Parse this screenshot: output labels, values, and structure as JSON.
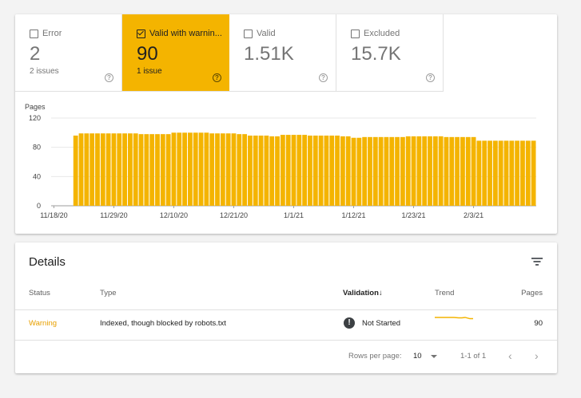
{
  "tiles": [
    {
      "label": "Error",
      "value": "2",
      "sub": "2 issues",
      "checked": false
    },
    {
      "label": "Valid with warnin...",
      "value": "90",
      "sub": "1 issue",
      "checked": true
    },
    {
      "label": "Valid",
      "value": "1.51K",
      "sub": "",
      "checked": false
    },
    {
      "label": "Excluded",
      "value": "15.7K",
      "sub": "",
      "checked": false
    }
  ],
  "help_glyph": "?",
  "colors": {
    "accent": "#f4b400",
    "bar": "#f4b400",
    "grid": "#e8e8e8",
    "axis": "#9e9e9e"
  },
  "chart_data": {
    "type": "bar",
    "ylabel": "Pages",
    "ylim": [
      0,
      120
    ],
    "yticks": [
      "0",
      "40",
      "80",
      "120"
    ],
    "xtick_labels": [
      "11/18/20",
      "11/29/20",
      "12/10/20",
      "12/21/20",
      "1/1/21",
      "1/12/21",
      "1/23/21",
      "2/3/21"
    ],
    "xtick_index": [
      0,
      11,
      22,
      33,
      44,
      55,
      66,
      77
    ],
    "series": [
      {
        "values": [
          0,
          0,
          0,
          0,
          96,
          99,
          99,
          99,
          99,
          99,
          99,
          99,
          99,
          99,
          99,
          99,
          98,
          98,
          98,
          98,
          98,
          98,
          100,
          100,
          100,
          100,
          100,
          100,
          100,
          99,
          99,
          99,
          99,
          99,
          98,
          98,
          96,
          96,
          96,
          96,
          95,
          95,
          97,
          97,
          97,
          97,
          97,
          96,
          96,
          96,
          96,
          96,
          96,
          95,
          95,
          93,
          93,
          94,
          94,
          94,
          94,
          94,
          94,
          94,
          94,
          95,
          95,
          95,
          95,
          95,
          95,
          95,
          94,
          94,
          94,
          94,
          94,
          94,
          89,
          89,
          89,
          89,
          89,
          89,
          89,
          89,
          89,
          89,
          89
        ]
      }
    ]
  },
  "details": {
    "title": "Details",
    "filter_icon": "filter-icon",
    "headers": {
      "status": "Status",
      "type": "Type",
      "validation": "Validation",
      "validation_sort_icon": "↓",
      "trend": "Trend",
      "pages": "Pages"
    },
    "rows": [
      {
        "status": "Warning",
        "type": "Indexed, though blocked by robots.txt",
        "validation_icon": "!",
        "validation": "Not Started",
        "pages": "90"
      }
    ],
    "footer": {
      "rows_per_page_label": "Rows per page:",
      "rows_per_page_value": "10",
      "range": "1-1 of 1",
      "prev_icon": "‹",
      "next_icon": "›"
    }
  },
  "status_colors": {
    "warning": "#e8a000"
  }
}
